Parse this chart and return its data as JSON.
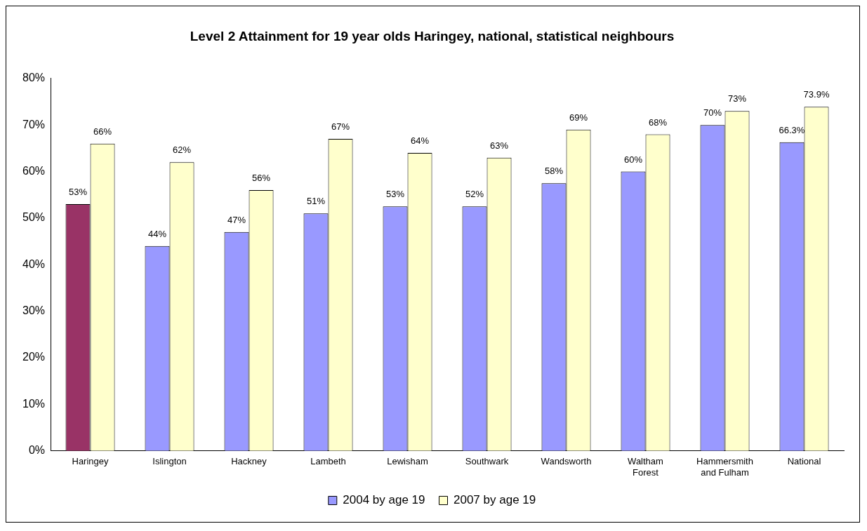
{
  "chart_data": {
    "type": "bar",
    "title": "Level 2 Attainment for 19 year olds Haringey, national, statistical neighbours",
    "categories": [
      "Haringey",
      "Islington",
      "Hackney",
      "Lambeth",
      "Lewisham",
      "Southwark",
      "Wandsworth",
      "Waltham Forest",
      "Hammersmith and Fulham",
      "National"
    ],
    "series": [
      {
        "name": "2004 by age 19",
        "color": "#9999ff",
        "colors": [
          "#993366",
          "#9999ff",
          "#9999ff",
          "#9999ff",
          "#9999ff",
          "#9999ff",
          "#9999ff",
          "#9999ff",
          "#9999ff",
          "#9999ff"
        ],
        "values": [
          53,
          44,
          47,
          51,
          52.5,
          52.5,
          57.5,
          60,
          70,
          66.3
        ],
        "value_labels": [
          "53%",
          "44%",
          "47%",
          "51%",
          "53%",
          "52%",
          "58%",
          "60%",
          "70%",
          "66.3%"
        ]
      },
      {
        "name": "2007 by age 19",
        "color": "#ffffcc",
        "values": [
          66,
          62,
          56,
          67,
          64,
          63,
          69,
          68,
          73,
          73.9
        ],
        "value_labels": [
          "66%",
          "62%",
          "56%",
          "67%",
          "64%",
          "63%",
          "69%",
          "68%",
          "73%",
          "73.9%"
        ]
      }
    ],
    "ylim": [
      0,
      80
    ],
    "yticks": [
      {
        "value": 0,
        "label": "0%"
      },
      {
        "value": 10,
        "label": "10%"
      },
      {
        "value": 20,
        "label": "20%"
      },
      {
        "value": 30,
        "label": "30%"
      },
      {
        "value": 40,
        "label": "40%"
      },
      {
        "value": 50,
        "label": "50%"
      },
      {
        "value": 60,
        "label": "60%"
      },
      {
        "value": 70,
        "label": "70%"
      },
      {
        "value": 80,
        "label": "80%"
      }
    ],
    "grid": false,
    "legend": "bottom"
  }
}
